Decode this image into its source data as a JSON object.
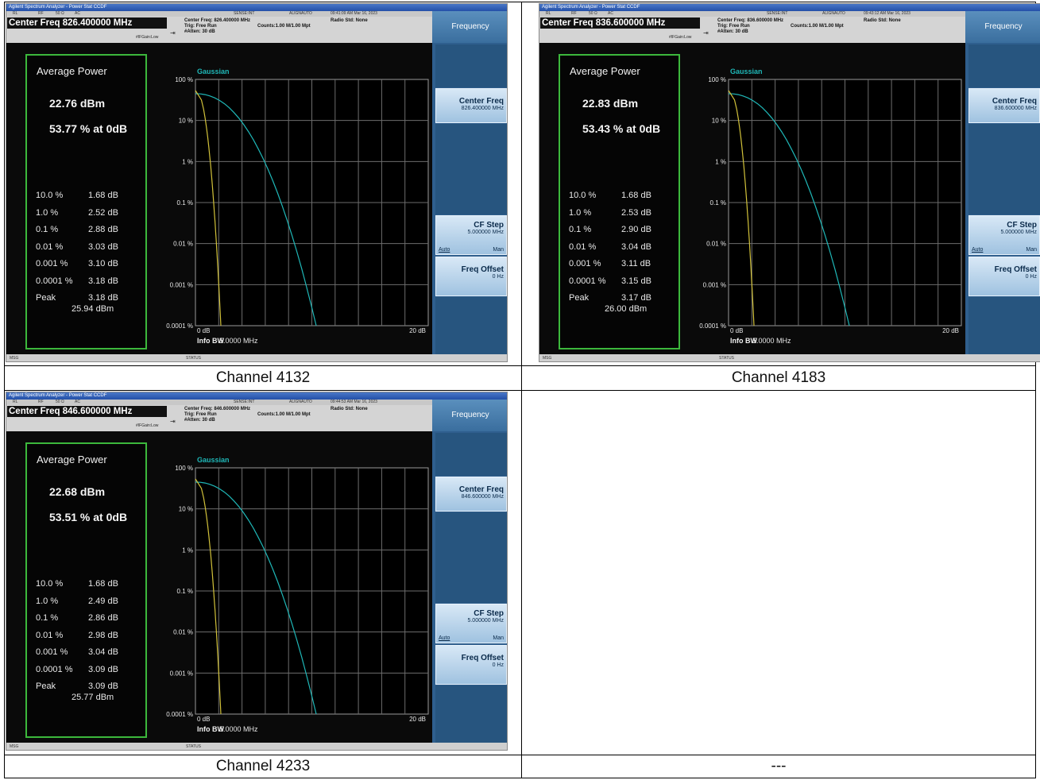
{
  "captions": [
    "Channel 4132",
    "Channel 4183",
    "Channel 4233",
    "---"
  ],
  "common": {
    "window_title": "Agilent Spectrum Analyzer - Power Stat CCDF",
    "status_flags": {
      "rl": "RL",
      "rf": "RF",
      "ohm": "50 Ω",
      "ac": "AC",
      "sense": "SENSE:INT",
      "align": "ALIGNAUTO"
    },
    "trig": "Trig: Free Run",
    "counts": "Counts:1.00 M/1.00 Mpt",
    "atten": "#Atten: 30 dB",
    "ifgain": "#IFGain:Low",
    "radio_std": "Radio Std: None",
    "softkey_title": "Frequency",
    "sk_center_label": "Center Freq",
    "sk_cfstep_label": "CF Step",
    "sk_cfstep_value": "5.000000 MHz",
    "sk_auto": "Auto",
    "sk_man": "Man",
    "sk_offset_label": "Freq Offset",
    "sk_offset_value": "0 Hz",
    "avg_title": "Average Power",
    "gaussian": "Gaussian",
    "yticks": [
      "100 %",
      "10 %",
      "1 %",
      "0.1 %",
      "0.01 %",
      "0.001 %",
      "0.0001 %"
    ],
    "x_left": "0 dB",
    "x_right": "20 dB",
    "info_bw_label": "Info BW",
    "info_bw_value": "5.0000 MHz",
    "msg": "MSG",
    "status": "STATUS",
    "colors": {
      "gaussian": "#1fb7b7",
      "measured": "#d2c23a",
      "frame": "#3cb83c"
    }
  },
  "screens": [
    {
      "center_freq_box": "Center Freq 826.400000 MHz",
      "center_freq_info": "Center Freq: 826.400000 MHz",
      "timestamp": "09:41:09 AM Mar 16, 2023",
      "sk_center_value": "826.400000 MHz",
      "avg_dbm": "22.76 dBm",
      "avg_pct": "53.77 % at 0dB",
      "stats": [
        {
          "p": "10.0 %",
          "v": "1.68 dB"
        },
        {
          "p": "1.0 %",
          "v": "2.52 dB"
        },
        {
          "p": "0.1 %",
          "v": "2.88 dB"
        },
        {
          "p": "0.01 %",
          "v": "3.03 dB"
        },
        {
          "p": "0.001 %",
          "v": "3.10 dB"
        },
        {
          "p": "0.0001 %",
          "v": "3.18 dB"
        },
        {
          "p": "Peak",
          "v": "3.18 dB"
        }
      ],
      "peak_dbm": "25.94 dBm"
    },
    {
      "center_freq_box": "Center Freq 836.600000 MHz",
      "center_freq_info": "Center Freq: 836.600000 MHz",
      "timestamp": "09:43:12 AM Mar 16, 2023",
      "sk_center_value": "836.600000 MHz",
      "avg_dbm": "22.83 dBm",
      "avg_pct": "53.43 % at 0dB",
      "stats": [
        {
          "p": "10.0 %",
          "v": "1.68 dB"
        },
        {
          "p": "1.0 %",
          "v": "2.53 dB"
        },
        {
          "p": "0.1 %",
          "v": "2.90 dB"
        },
        {
          "p": "0.01 %",
          "v": "3.04 dB"
        },
        {
          "p": "0.001 %",
          "v": "3.11 dB"
        },
        {
          "p": "0.0001 %",
          "v": "3.15 dB"
        },
        {
          "p": "Peak",
          "v": "3.17 dB"
        }
      ],
      "peak_dbm": "26.00 dBm"
    },
    {
      "center_freq_box": "Center Freq 846.600000 MHz",
      "center_freq_info": "Center Freq: 846.600000 MHz",
      "timestamp": "09:44:53 AM Mar 16, 2023",
      "sk_center_value": "846.600000 MHz",
      "avg_dbm": "22.68 dBm",
      "avg_pct": "53.51 % at 0dB",
      "stats": [
        {
          "p": "10.0 %",
          "v": "1.68 dB"
        },
        {
          "p": "1.0 %",
          "v": "2.49 dB"
        },
        {
          "p": "0.1 %",
          "v": "2.86 dB"
        },
        {
          "p": "0.01 %",
          "v": "2.98 dB"
        },
        {
          "p": "0.001 %",
          "v": "3.04 dB"
        },
        {
          "p": "0.0001 %",
          "v": "3.09 dB"
        },
        {
          "p": "Peak",
          "v": "3.09 dB"
        }
      ],
      "peak_dbm": "25.77 dBm"
    }
  ]
}
